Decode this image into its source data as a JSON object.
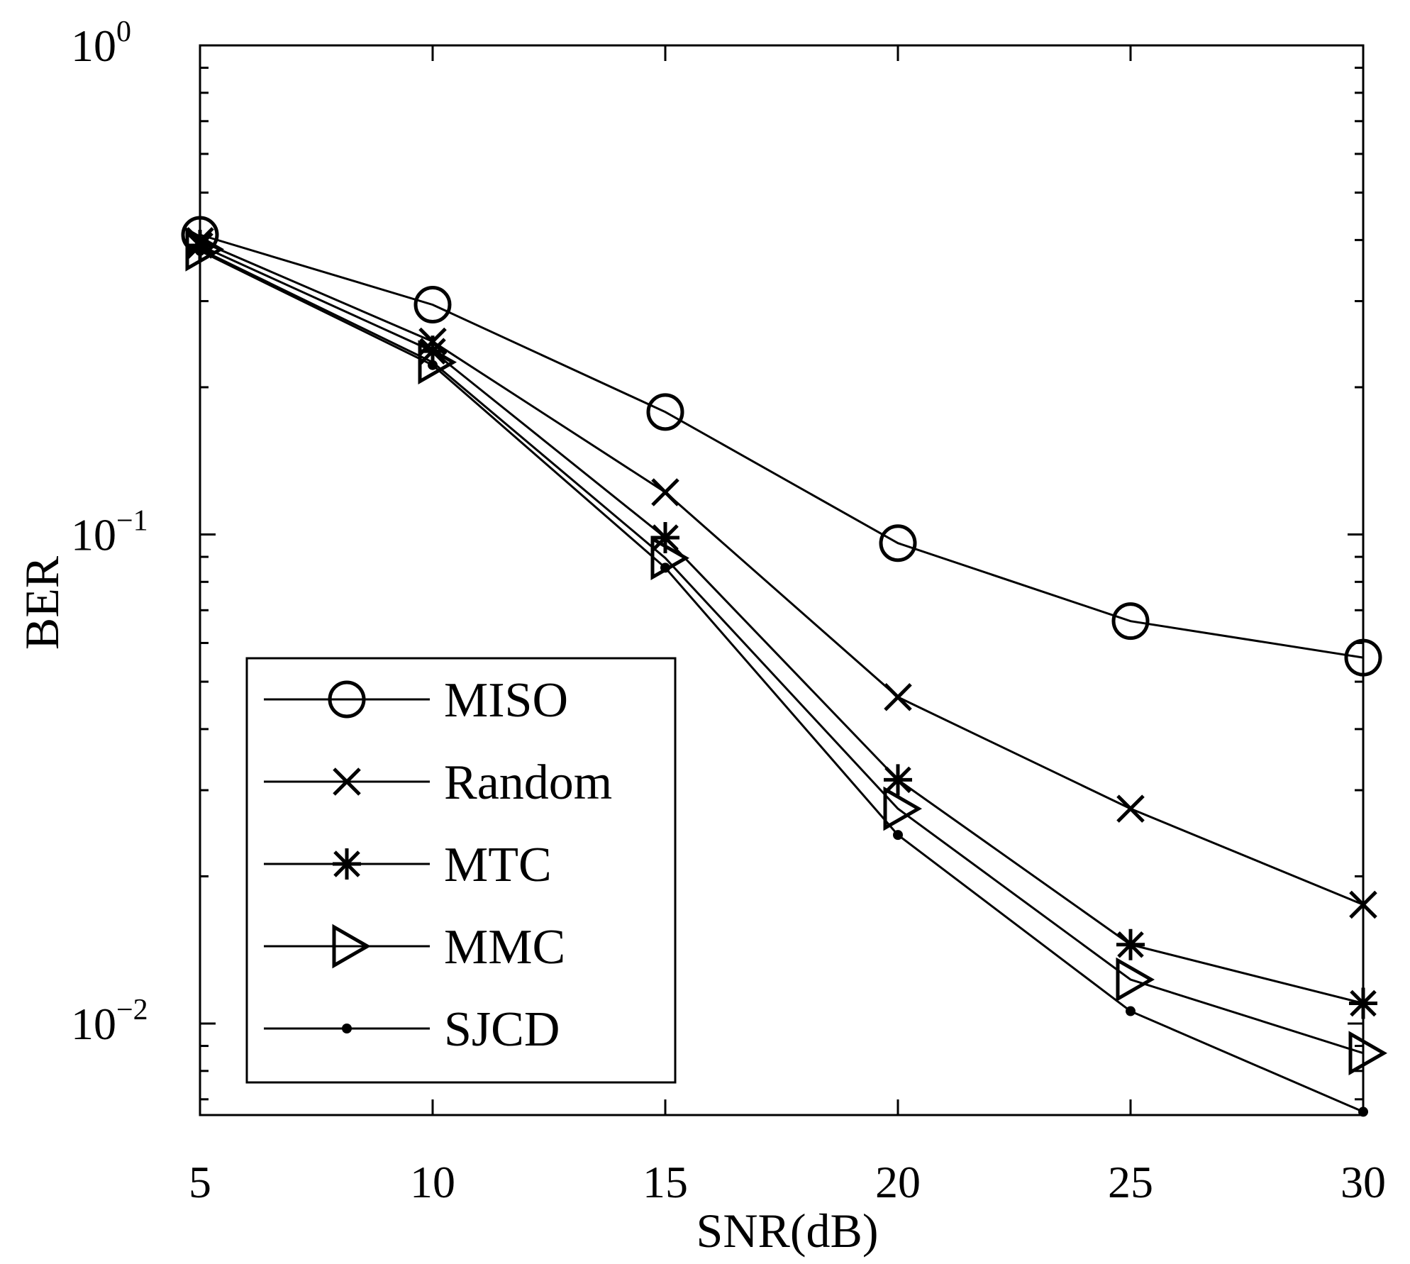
{
  "chart_data": {
    "type": "line",
    "title": "",
    "xlabel": "SNR(dB)",
    "ylabel": "BER",
    "xlim": [
      5,
      30
    ],
    "ylim": [
      0.0065,
      1
    ],
    "yscale": "log",
    "x": [
      5,
      10,
      15,
      20,
      25,
      30
    ],
    "xticks": [
      5,
      10,
      15,
      20,
      25,
      30
    ],
    "yticks": [
      {
        "value": 1,
        "base": "10",
        "exp": "0"
      },
      {
        "value": 0.1,
        "base": "10",
        "exp": "−1"
      },
      {
        "value": 0.01,
        "base": "10",
        "exp": "−2"
      }
    ],
    "grid": false,
    "legend_position": "bottom-left",
    "series": [
      {
        "name": "MISO",
        "marker": "circle",
        "values": [
          0.41,
          0.295,
          0.178,
          0.096,
          0.0665,
          0.056
        ]
      },
      {
        "name": "Random",
        "marker": "x",
        "values": [
          0.398,
          0.248,
          0.122,
          0.0465,
          0.0275,
          0.0175
        ]
      },
      {
        "name": "MTC",
        "marker": "asterisk",
        "values": [
          0.39,
          0.237,
          0.0985,
          0.0315,
          0.0145,
          0.011
        ]
      },
      {
        "name": "MMC",
        "marker": "triangle-right",
        "values": [
          0.383,
          0.225,
          0.0895,
          0.0275,
          0.0123,
          0.0087
        ]
      },
      {
        "name": "SJCD",
        "marker": "dot",
        "values": [
          0.38,
          0.222,
          0.0855,
          0.0243,
          0.0106,
          0.0066
        ]
      }
    ]
  }
}
